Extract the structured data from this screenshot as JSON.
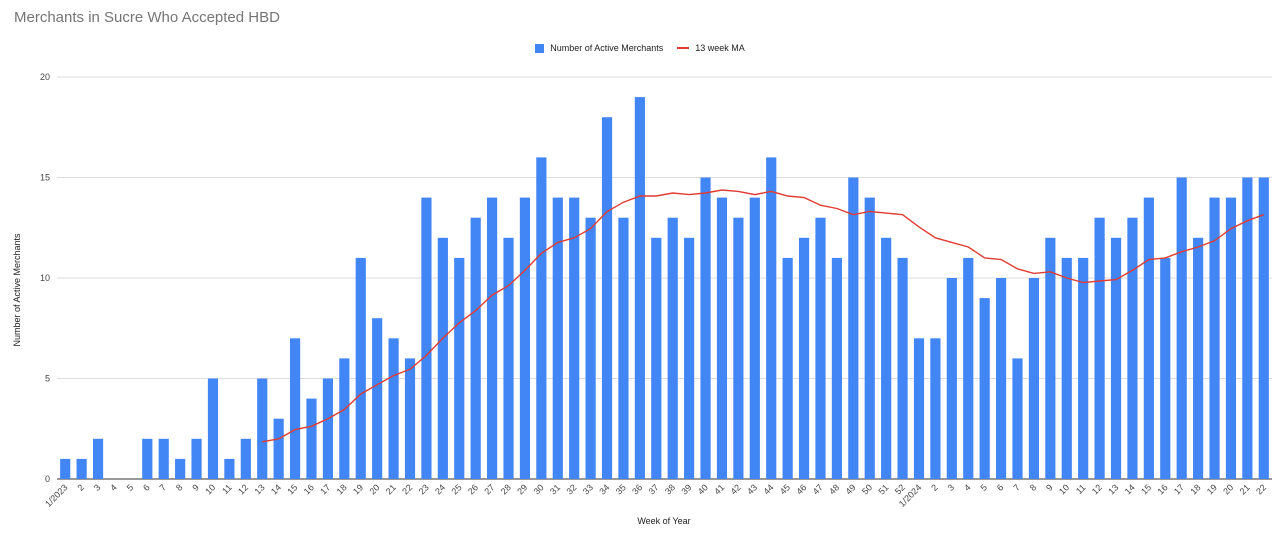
{
  "colors": {
    "bar": "#4285f4",
    "line": "#e03c31",
    "grid": "#dddddd",
    "axis": "#333333",
    "title": "#757575"
  },
  "chart_data": {
    "type": "bar",
    "title": "Merchants in Sucre Who Accepted HBD",
    "xlabel": "Week of Year",
    "ylabel": "Number of Active Merchants",
    "ylim": [
      0,
      20
    ],
    "yticks": [
      0,
      5,
      10,
      15,
      20
    ],
    "grid": true,
    "legend_position": "top-center",
    "categories": [
      "1/2023",
      "2",
      "3",
      "4",
      "5",
      "6",
      "7",
      "8",
      "9",
      "10",
      "11",
      "12",
      "13",
      "14",
      "15",
      "16",
      "17",
      "18",
      "19",
      "20",
      "21",
      "22",
      "23",
      "24",
      "25",
      "26",
      "27",
      "28",
      "29",
      "30",
      "31",
      "32",
      "33",
      "34",
      "35",
      "36",
      "37",
      "38",
      "39",
      "40",
      "41",
      "42",
      "43",
      "44",
      "45",
      "46",
      "47",
      "48",
      "49",
      "50",
      "51",
      "52",
      "1/2024",
      "2",
      "3",
      "4",
      "5",
      "6",
      "7",
      "8",
      "9",
      "10",
      "11",
      "12",
      "13",
      "14",
      "15",
      "16",
      "17",
      "18",
      "19",
      "20",
      "21",
      "22"
    ],
    "series": [
      {
        "name": "Number of Active Merchants",
        "type": "bar",
        "values": [
          1,
          1,
          2,
          0,
          0,
          2,
          2,
          1,
          2,
          5,
          1,
          2,
          5,
          3,
          7,
          4,
          5,
          6,
          11,
          8,
          7,
          6,
          14,
          12,
          11,
          13,
          14,
          12,
          14,
          16,
          14,
          14,
          13,
          18,
          13,
          19,
          12,
          13,
          12,
          15,
          14,
          13,
          14,
          16,
          11,
          12,
          13,
          11,
          15,
          14,
          12,
          11,
          7,
          7,
          10,
          11,
          9,
          10,
          6,
          10,
          12,
          11,
          11,
          13,
          12,
          13,
          14,
          11,
          15,
          12,
          14,
          14,
          15,
          15
        ]
      },
      {
        "name": "13 week MA",
        "type": "line",
        "values": [
          null,
          null,
          null,
          null,
          null,
          null,
          null,
          null,
          null,
          null,
          null,
          null,
          1.85,
          2.0,
          2.46,
          2.62,
          3.0,
          3.46,
          4.23,
          4.69,
          5.15,
          5.46,
          6.15,
          7.0,
          7.77,
          8.38,
          9.15,
          9.62,
          10.38,
          11.23,
          11.77,
          12.0,
          12.46,
          13.3,
          13.77,
          14.08,
          14.08,
          14.23,
          14.15,
          14.23,
          14.38,
          14.31,
          14.15,
          14.31,
          14.08,
          14.0,
          13.62,
          13.46,
          13.15,
          13.31,
          13.23,
          13.15,
          12.54,
          12.0,
          11.77,
          11.54,
          11.0,
          10.92,
          10.46,
          10.23,
          10.31,
          10.0,
          9.77,
          9.85,
          9.92,
          10.38,
          10.92,
          11.0,
          11.31,
          11.54,
          11.85,
          12.46,
          12.85,
          13.15
        ]
      }
    ]
  }
}
